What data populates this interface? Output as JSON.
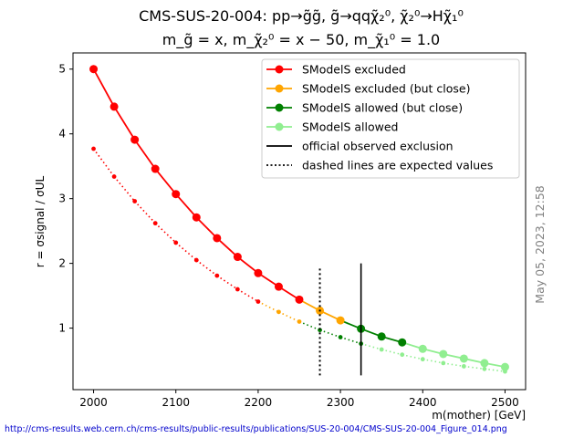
{
  "chart_data": {
    "type": "line",
    "title_line1": "CMS-SUS-20-004: pp→g̃g̃, g̃→qqχ̃₂⁰, χ̃₂⁰→Hχ̃₁⁰",
    "title_line2": "m_g̃ = x, m_χ̃₂⁰ = x − 50, m_χ̃₁⁰ = 1.0",
    "xlabel": "m(mother) [GeV]",
    "ylabel": "r = σsignal / σUL",
    "xlim": [
      1975,
      2525
    ],
    "ylim": [
      0.05,
      5.25
    ],
    "xticks": [
      2000,
      2100,
      2200,
      2300,
      2400,
      2500
    ],
    "yticks": [
      1,
      2,
      3,
      4,
      5
    ],
    "legend_position": "upper-right",
    "grid": false,
    "observed": {
      "x": [
        2000,
        2025,
        2050,
        2075,
        2100,
        2125,
        2150,
        2175,
        2200,
        2225,
        2250,
        2275,
        2300,
        2325,
        2350,
        2375,
        2400,
        2425,
        2450,
        2475,
        2500
      ],
      "y": [
        5.0,
        4.42,
        3.91,
        3.46,
        3.07,
        2.71,
        2.39,
        2.1,
        1.85,
        1.64,
        1.44,
        1.27,
        1.12,
        0.99,
        0.87,
        0.78,
        0.68,
        0.6,
        0.53,
        0.46,
        0.4
      ],
      "status": [
        "excluded",
        "excluded",
        "excluded",
        "excluded",
        "excluded",
        "excluded",
        "excluded",
        "excluded",
        "excluded",
        "excluded",
        "excluded",
        "close-excluded",
        "close-excluded",
        "close-allowed",
        "close-allowed",
        "close-allowed",
        "allowed",
        "allowed",
        "allowed",
        "allowed",
        "allowed"
      ]
    },
    "expected": {
      "x": [
        2000,
        2025,
        2050,
        2075,
        2100,
        2125,
        2150,
        2175,
        2200,
        2225,
        2250,
        2275,
        2300,
        2325,
        2350,
        2375,
        2400,
        2425,
        2450,
        2475,
        2500
      ],
      "y": [
        3.77,
        3.34,
        2.96,
        2.62,
        2.32,
        2.05,
        1.81,
        1.6,
        1.41,
        1.25,
        1.1,
        0.97,
        0.86,
        0.76,
        0.67,
        0.59,
        0.52,
        0.46,
        0.41,
        0.37,
        0.33
      ],
      "status": [
        "excluded",
        "excluded",
        "excluded",
        "excluded",
        "excluded",
        "excluded",
        "excluded",
        "excluded",
        "excluded",
        "close-excluded",
        "close-excluded",
        "close-allowed",
        "close-allowed",
        "close-allowed",
        "allowed",
        "allowed",
        "allowed",
        "allowed",
        "allowed",
        "allowed",
        "allowed"
      ]
    },
    "exclusion_lines": {
      "observed": {
        "x": 2325,
        "y": [
          0.27,
          2.0
        ]
      },
      "expected": {
        "x": 2275,
        "y": [
          0.27,
          1.95
        ]
      }
    },
    "colors": {
      "excluded": "#ff0000",
      "close-excluded": "#ffa500",
      "close-allowed": "#008000",
      "allowed": "#90ee90",
      "exclusion": "#000000"
    },
    "legend": [
      {
        "label": "SModelS excluded",
        "style": "marker",
        "color": "#ff0000"
      },
      {
        "label": "SModelS excluded (but close)",
        "style": "marker",
        "color": "#ffa500"
      },
      {
        "label": "SModelS allowed (but close)",
        "style": "marker",
        "color": "#008000"
      },
      {
        "label": "SModelS allowed",
        "style": "marker",
        "color": "#90ee90"
      },
      {
        "label": "official observed exclusion",
        "style": "solid",
        "color": "#000000"
      },
      {
        "label": "dashed lines are expected values",
        "style": "dotted",
        "color": "#000000"
      }
    ]
  },
  "timestamp": "May 05, 2023, 12:58",
  "source_url": "http://cms-results.web.cern.ch/cms-results/public-results/publications/SUS-20-004/CMS-SUS-20-004_Figure_014.png"
}
